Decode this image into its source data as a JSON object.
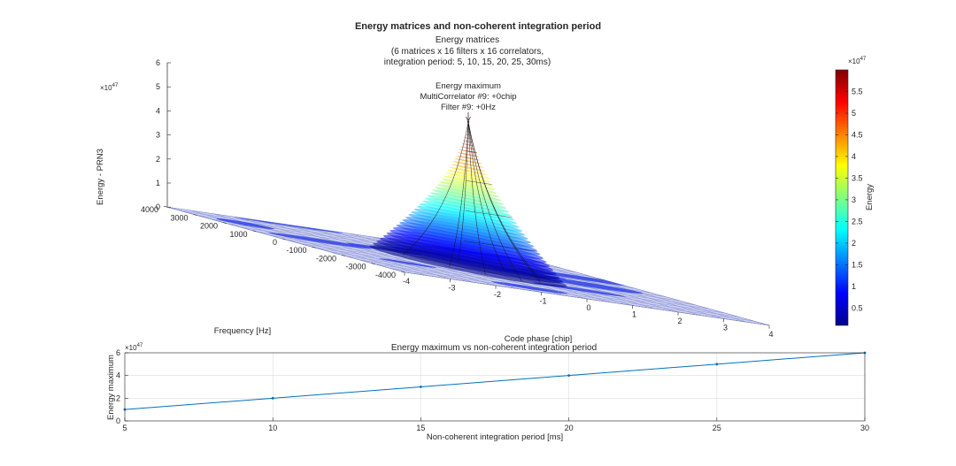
{
  "figure": {
    "title": "Energy matrices and non-coherent integration period"
  },
  "chart_data": [
    {
      "type": "surface",
      "title": "Energy matrices",
      "subtitle_lines": [
        "(6 matrices x 16 filters x 16 correlators,",
        "integration period: 5, 10, 15, 20, 25, 30ms)"
      ],
      "xlabel": "Code phase [chip]",
      "ylabel": "Frequency [Hz]",
      "zlabel": "Energy - PRN3",
      "x_ticks": [
        "-4",
        "-3",
        "-2",
        "-1",
        "0",
        "1",
        "2",
        "3",
        "4"
      ],
      "y_ticks": [
        "-4000",
        "-3000",
        "-2000",
        "-1000",
        "0",
        "1000",
        "2000",
        "3000",
        "4000"
      ],
      "z_ticks": [
        "0",
        "1",
        "2",
        "3",
        "4",
        "5",
        "6"
      ],
      "z_exponent_label": "×10",
      "z_exponent": "47",
      "xlim": [
        -4,
        4
      ],
      "ylim": [
        -4000,
        4000
      ],
      "zlim": [
        0,
        6
      ],
      "grid": true,
      "colormap": "jet",
      "peak": {
        "x": 0,
        "y": 0,
        "z": 6,
        "annotation": [
          "Energy maximum",
          "MultiCorrelator #9: +0chip",
          "Filter #9: +0Hz"
        ]
      },
      "colorbar": {
        "label": "Energy",
        "ticks": [
          "0.5",
          "1",
          "1.5",
          "2",
          "2.5",
          "3",
          "3.5",
          "4",
          "4.5",
          "5",
          "5.5"
        ],
        "range": [
          0.1,
          6
        ],
        "exponent_label": "×10",
        "exponent": "47"
      }
    },
    {
      "type": "line",
      "title": "Energy maximum vs non-coherent integration period",
      "xlabel": "Non-coherent integration period [ms]",
      "ylabel": "Energy maximum",
      "x": [
        5,
        10,
        15,
        20,
        25,
        30
      ],
      "values": [
        1,
        2,
        3,
        4,
        5,
        6
      ],
      "x_ticks": [
        "5",
        "10",
        "15",
        "20",
        "25",
        "30"
      ],
      "y_ticks": [
        "0",
        "2",
        "4",
        "6"
      ],
      "xlim": [
        5,
        30
      ],
      "ylim": [
        0,
        6
      ],
      "y_exponent_label": "×10",
      "y_exponent": "47",
      "grid": true,
      "line_color": "#0072bd"
    }
  ]
}
